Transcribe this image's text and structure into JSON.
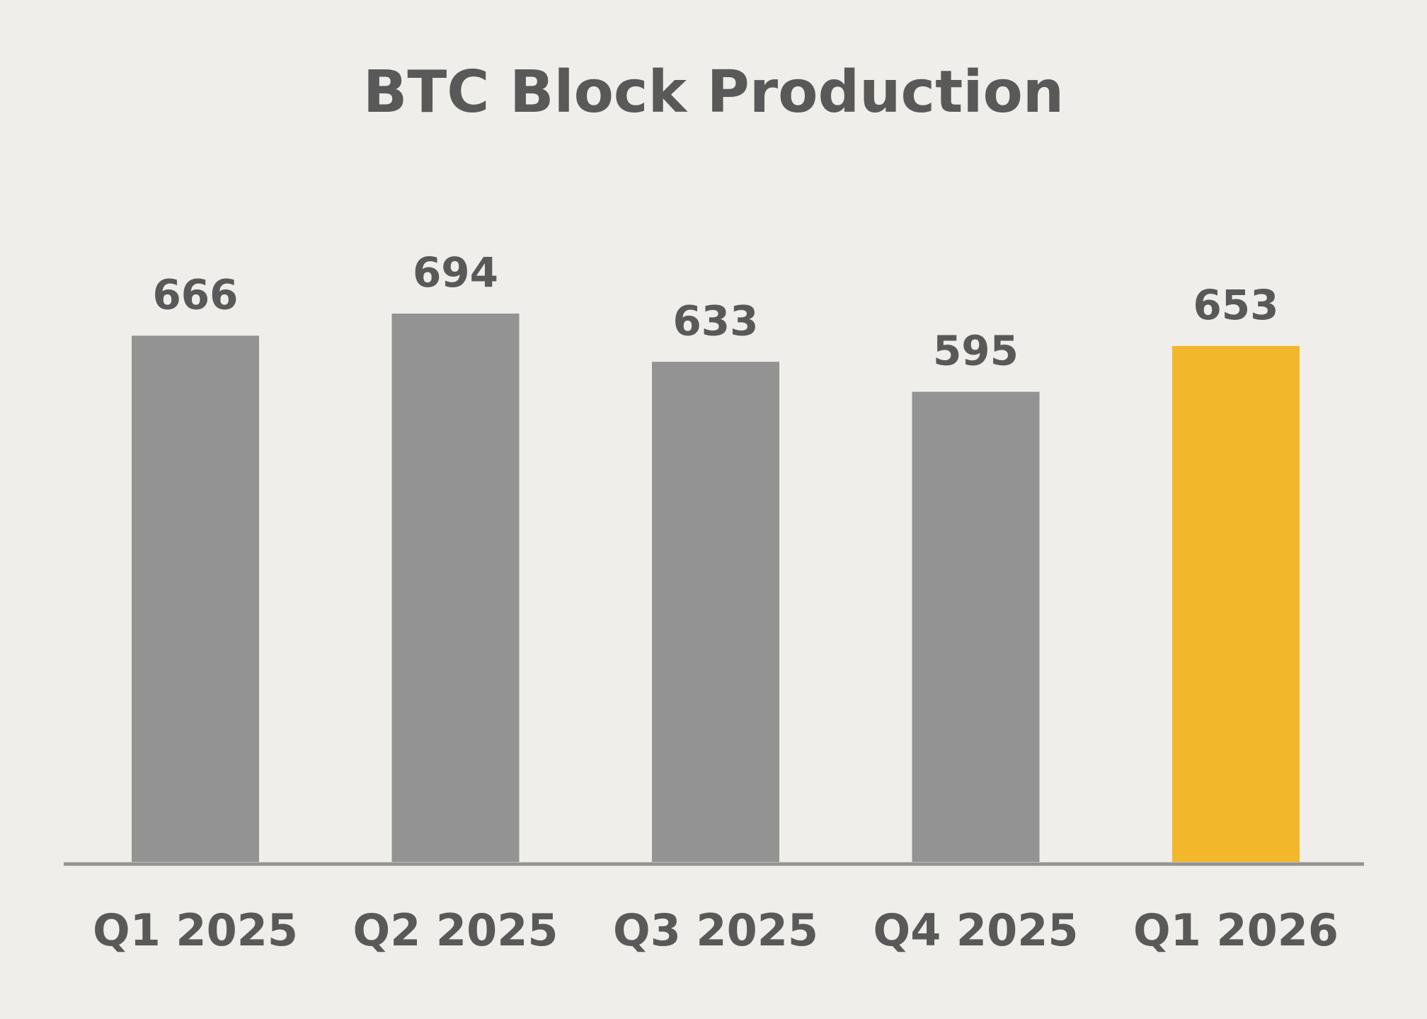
{
  "chart_data": {
    "type": "bar",
    "title": "BTC Block Production",
    "categories": [
      "Q1 2025",
      "Q2 2025",
      "Q3 2025",
      "Q4 2025",
      "Q1 2026"
    ],
    "values": [
      666,
      694,
      633,
      595,
      653
    ],
    "value_labels": [
      "666",
      "694",
      "633",
      "595",
      "653"
    ],
    "xlabel": "",
    "ylabel": "",
    "ylim": [
      0,
      800
    ],
    "grid": false,
    "legend": "none",
    "bar_colors": [
      "#939393",
      "#939393",
      "#939393",
      "#939393",
      "#f3b72c"
    ],
    "axis_color": "#939393",
    "text_color": "#595959",
    "background": "#efeeea"
  }
}
